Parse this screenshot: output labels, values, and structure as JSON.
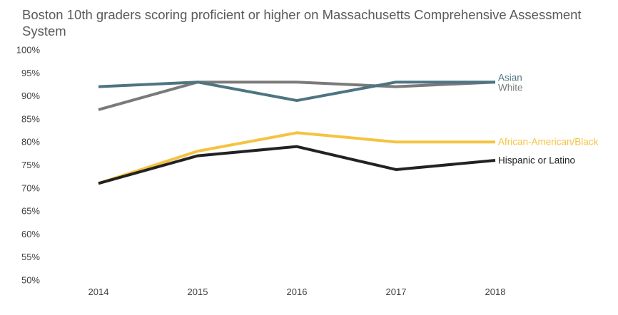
{
  "chart_data": {
    "type": "line",
    "title": "Boston 10th graders scoring proficient or higher on Massachusetts Comprehensive Assessment System",
    "xlabel": "",
    "ylabel": "",
    "x": [
      "2014",
      "2015",
      "2016",
      "2017",
      "2018"
    ],
    "y_ticks": [
      "50%",
      "55%",
      "60%",
      "65%",
      "70%",
      "75%",
      "80%",
      "85%",
      "90%",
      "95%",
      "100%"
    ],
    "ylim": [
      50,
      100
    ],
    "grid": false,
    "legend": "direct labels at line ends",
    "series": [
      {
        "name": "White",
        "color": "#7a7a7a",
        "values": [
          87,
          93,
          93,
          92,
          93
        ]
      },
      {
        "name": "Asian",
        "color": "#4e7482",
        "values": [
          92,
          93,
          89,
          93,
          93
        ]
      },
      {
        "name": "African-American/Black",
        "color": "#f5c342",
        "values": [
          71,
          78,
          82,
          80,
          80
        ]
      },
      {
        "name": "Hispanic or Latino",
        "color": "#222222",
        "values": [
          71,
          77,
          79,
          74,
          76
        ]
      }
    ]
  }
}
